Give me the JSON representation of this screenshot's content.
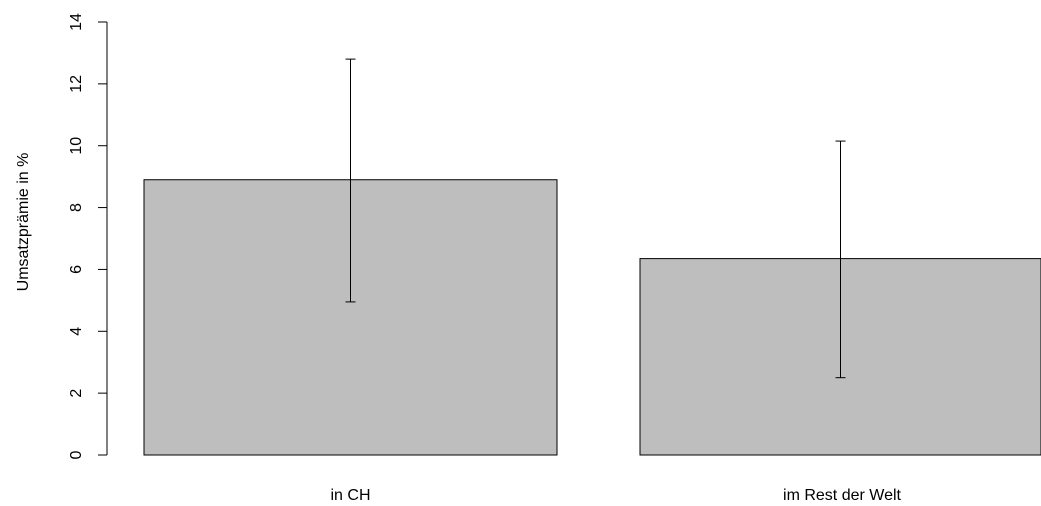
{
  "chart_data": {
    "type": "bar",
    "categories": [
      "in CH",
      "im Rest der Welt"
    ],
    "values": [
      8.9,
      6.35
    ],
    "error_low": [
      4.95,
      2.5
    ],
    "error_high": [
      12.8,
      10.15
    ],
    "ylabel": "Umsatzprämie in %",
    "ylim": [
      0,
      14
    ],
    "yticks": [
      0,
      2,
      4,
      6,
      8,
      10,
      12,
      14
    ],
    "bar_color": "#bebebe",
    "grid": false,
    "legend": "none"
  }
}
